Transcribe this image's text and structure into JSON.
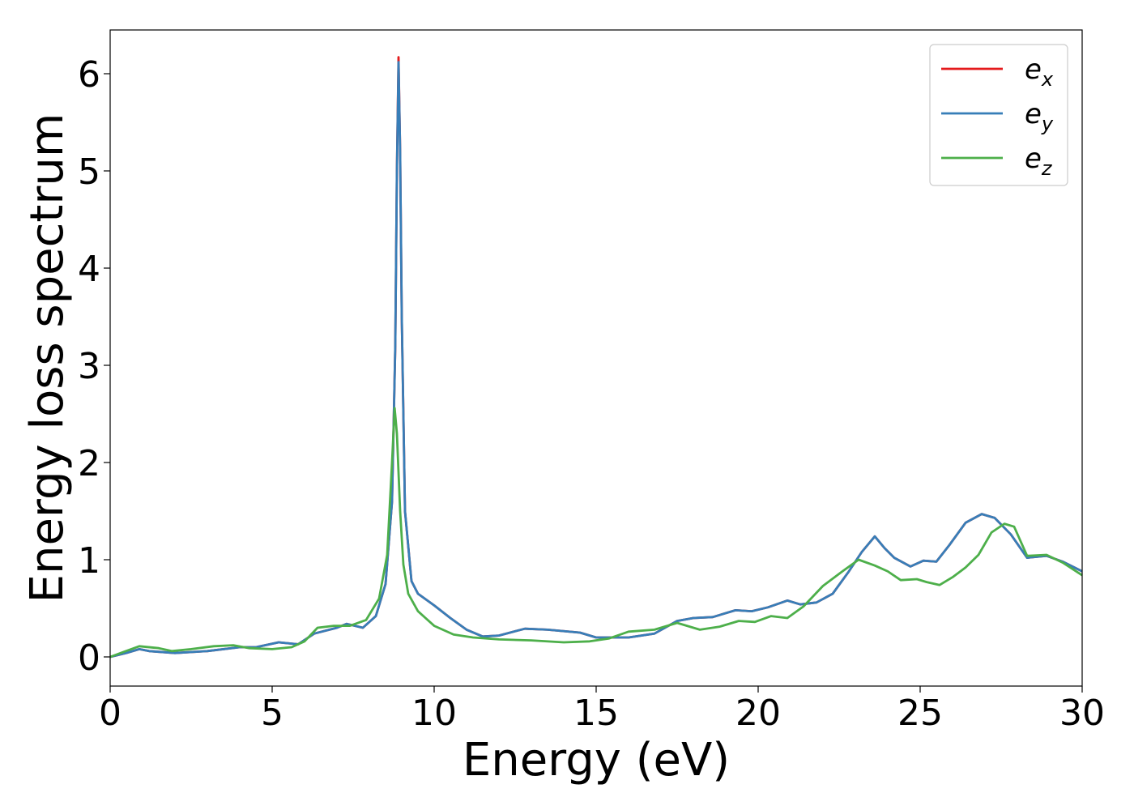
{
  "chart_data": {
    "type": "line",
    "xlabel": "Energy (eV)",
    "ylabel": "Energy loss spectrum",
    "xlim": [
      0,
      30
    ],
    "ylim": [
      -0.3,
      6.45
    ],
    "xticks": [
      0,
      5,
      10,
      15,
      20,
      25,
      30
    ],
    "yticks": [
      0,
      1,
      2,
      3,
      4,
      5,
      6
    ],
    "grid": false,
    "legend_position": "top-right",
    "series": [
      {
        "name": "e_x",
        "legend_base": "e",
        "legend_sub": "x",
        "color": "#e41a1c",
        "x": [
          0,
          0.5,
          0.9,
          1.2,
          2.0,
          3.0,
          4.0,
          4.5,
          5.2,
          5.8,
          6.3,
          7.0,
          7.3,
          7.8,
          8.2,
          8.5,
          8.7,
          8.8,
          8.85,
          8.9,
          8.95,
          9.0,
          9.1,
          9.3,
          9.5,
          10.0,
          10.5,
          11.0,
          11.5,
          12.0,
          12.8,
          13.5,
          14.5,
          15.0,
          16.0,
          16.8,
          17.5,
          18.0,
          18.6,
          19.3,
          19.8,
          20.3,
          20.9,
          21.3,
          21.8,
          22.3,
          22.8,
          23.2,
          23.6,
          23.9,
          24.2,
          24.7,
          25.1,
          25.5,
          25.9,
          26.4,
          26.9,
          27.3,
          27.8,
          28.3,
          28.9,
          29.4,
          30.0
        ],
        "y": [
          0.0,
          0.04,
          0.08,
          0.06,
          0.04,
          0.06,
          0.1,
          0.1,
          0.15,
          0.13,
          0.24,
          0.3,
          0.34,
          0.3,
          0.42,
          0.75,
          1.6,
          3.2,
          5.0,
          6.17,
          5.2,
          3.5,
          1.5,
          0.78,
          0.65,
          0.53,
          0.4,
          0.28,
          0.21,
          0.22,
          0.29,
          0.28,
          0.25,
          0.2,
          0.2,
          0.24,
          0.37,
          0.4,
          0.41,
          0.48,
          0.47,
          0.51,
          0.58,
          0.54,
          0.56,
          0.65,
          0.88,
          1.08,
          1.24,
          1.12,
          1.02,
          0.93,
          0.99,
          0.98,
          1.15,
          1.38,
          1.47,
          1.43,
          1.26,
          1.02,
          1.04,
          0.98,
          0.88
        ]
      },
      {
        "name": "e_y",
        "legend_base": "e",
        "legend_sub": "y",
        "color": "#377eb8",
        "x": [
          0,
          0.5,
          0.9,
          1.2,
          2.0,
          3.0,
          4.0,
          4.5,
          5.2,
          5.8,
          6.3,
          7.0,
          7.3,
          7.8,
          8.2,
          8.5,
          8.7,
          8.8,
          8.85,
          8.9,
          8.95,
          9.0,
          9.1,
          9.3,
          9.5,
          10.0,
          10.5,
          11.0,
          11.5,
          12.0,
          12.8,
          13.5,
          14.5,
          15.0,
          16.0,
          16.8,
          17.5,
          18.0,
          18.6,
          19.3,
          19.8,
          20.3,
          20.9,
          21.3,
          21.8,
          22.3,
          22.8,
          23.2,
          23.6,
          23.9,
          24.2,
          24.7,
          25.1,
          25.5,
          25.9,
          26.4,
          26.9,
          27.3,
          27.8,
          28.3,
          28.9,
          29.4,
          30.0
        ],
        "y": [
          0.0,
          0.04,
          0.08,
          0.06,
          0.04,
          0.06,
          0.1,
          0.1,
          0.15,
          0.13,
          0.24,
          0.3,
          0.34,
          0.3,
          0.42,
          0.75,
          1.6,
          3.2,
          5.0,
          6.12,
          5.2,
          3.5,
          1.5,
          0.78,
          0.65,
          0.53,
          0.4,
          0.28,
          0.21,
          0.22,
          0.29,
          0.28,
          0.25,
          0.2,
          0.2,
          0.24,
          0.37,
          0.4,
          0.41,
          0.48,
          0.47,
          0.51,
          0.58,
          0.54,
          0.56,
          0.65,
          0.88,
          1.08,
          1.24,
          1.12,
          1.02,
          0.93,
          0.99,
          0.98,
          1.15,
          1.38,
          1.47,
          1.43,
          1.26,
          1.02,
          1.04,
          0.98,
          0.88
        ]
      },
      {
        "name": "e_z",
        "legend_base": "e",
        "legend_sub": "z",
        "color": "#4daf4a",
        "x": [
          0,
          0.4,
          0.9,
          1.5,
          1.9,
          2.5,
          3.2,
          3.8,
          4.3,
          5.0,
          5.6,
          6.0,
          6.4,
          6.9,
          7.4,
          7.9,
          8.3,
          8.55,
          8.7,
          8.78,
          8.85,
          8.95,
          9.05,
          9.2,
          9.5,
          10.0,
          10.6,
          11.2,
          12.0,
          13.0,
          14.0,
          14.8,
          15.4,
          16.0,
          16.8,
          17.5,
          18.2,
          18.8,
          19.4,
          19.9,
          20.4,
          20.9,
          21.4,
          22.0,
          22.6,
          23.1,
          23.6,
          24.0,
          24.4,
          24.9,
          25.2,
          25.6,
          26.0,
          26.4,
          26.8,
          27.2,
          27.6,
          27.9,
          28.3,
          28.9,
          29.4,
          30.0
        ],
        "y": [
          0.0,
          0.05,
          0.11,
          0.09,
          0.06,
          0.08,
          0.11,
          0.12,
          0.09,
          0.08,
          0.1,
          0.16,
          0.3,
          0.32,
          0.32,
          0.38,
          0.6,
          1.05,
          2.0,
          2.56,
          2.3,
          1.5,
          0.95,
          0.65,
          0.47,
          0.32,
          0.23,
          0.2,
          0.18,
          0.17,
          0.15,
          0.16,
          0.19,
          0.26,
          0.28,
          0.35,
          0.28,
          0.31,
          0.37,
          0.36,
          0.42,
          0.4,
          0.52,
          0.73,
          0.88,
          1.0,
          0.94,
          0.88,
          0.79,
          0.8,
          0.77,
          0.74,
          0.82,
          0.92,
          1.05,
          1.28,
          1.37,
          1.34,
          1.04,
          1.05,
          0.97,
          0.84
        ]
      }
    ]
  }
}
